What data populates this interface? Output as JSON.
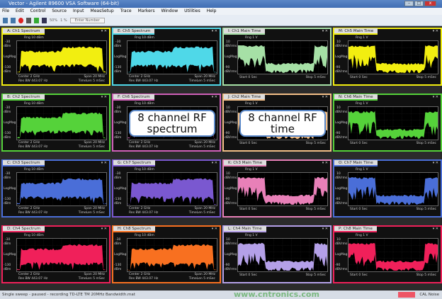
{
  "window": {
    "title": "Vector - Agilent 89600 VSA Software (64-bit)"
  },
  "menu": [
    "File",
    "Edit",
    "Control",
    "Source",
    "Input",
    "MeasSetup",
    "Trace",
    "Markers",
    "Window",
    "Utilities",
    "Help"
  ],
  "toolbar": {
    "zoom1": "50%",
    "zoom2": "1 %",
    "input_placeholder": "Enter Number"
  },
  "spectrum_labels": {
    "range": "Rng 10 dBm",
    "top": "-30",
    "top_unit": "dBm",
    "mid": "LogMag",
    "bottom": "-130",
    "bottom_unit": "dBm",
    "center": "Center 2 GHz",
    "span": "Span 20 MHz",
    "rbw": "Res BW 443.07 Hz",
    "timelen": "TimeLen 5 mSec"
  },
  "time_labels": {
    "range": "Rng 1 V",
    "top": "10",
    "top_unit": "dBVrms",
    "mid": "LogMag",
    "bottom": "-90",
    "bottom_unit": "dBVrms",
    "start": "Start 0 Sec",
    "stop": "Stop 5 mSec"
  },
  "panels": [
    {
      "title": "A: Ch1 Spectrum",
      "kind": "spectrum",
      "color": "#f2ee10"
    },
    {
      "title": "E: Ch5 Spectrum",
      "kind": "spectrum",
      "color": "#4fd8e8"
    },
    {
      "title": "I: Ch1 Main Time",
      "kind": "time",
      "color": "#a6e0a6"
    },
    {
      "title": "M: Ch5 Main Time",
      "kind": "time",
      "color": "#f2ee10"
    },
    {
      "title": "B: Ch2 Spectrum",
      "kind": "spectrum",
      "color": "#55d23a"
    },
    {
      "title": "F: Ch6 Spectrum",
      "kind": "spectrum",
      "color": "#d060b8"
    },
    {
      "title": "J: Ch2 Main Time",
      "kind": "time",
      "color": "#f4c088"
    },
    {
      "title": "N: Ch6 Main Time",
      "kind": "time",
      "color": "#55d23a"
    },
    {
      "title": "C: Ch3 Spectrum",
      "kind": "spectrum",
      "color": "#4a6ed8"
    },
    {
      "title": "G: Ch7 Spectrum",
      "kind": "spectrum",
      "color": "#7a58d0"
    },
    {
      "title": "K: Ch3 Main Time",
      "kind": "time",
      "color": "#e880b8"
    },
    {
      "title": "O: Ch7 Main Time",
      "kind": "time",
      "color": "#4a6ed8"
    },
    {
      "title": "D: Ch4 Spectrum",
      "kind": "spectrum",
      "color": "#f0205a"
    },
    {
      "title": "H: Ch8 Spectrum",
      "kind": "spectrum",
      "color": "#f87020"
    },
    {
      "title": "L: Ch4 Main Time",
      "kind": "time",
      "color": "#b4a0e8"
    },
    {
      "title": "P: Ch8 Main Time",
      "kind": "time",
      "color": "#f0205a"
    }
  ],
  "callouts": {
    "spectrum": "8 channel RF spectrum",
    "time": "8 channel RF time"
  },
  "status": {
    "text": "Single sweep - paused - recording TD-LTE TM 20MHz Bandwidth.mat",
    "right": "CAL Noise"
  },
  "watermark": "www.cntronics.com"
}
